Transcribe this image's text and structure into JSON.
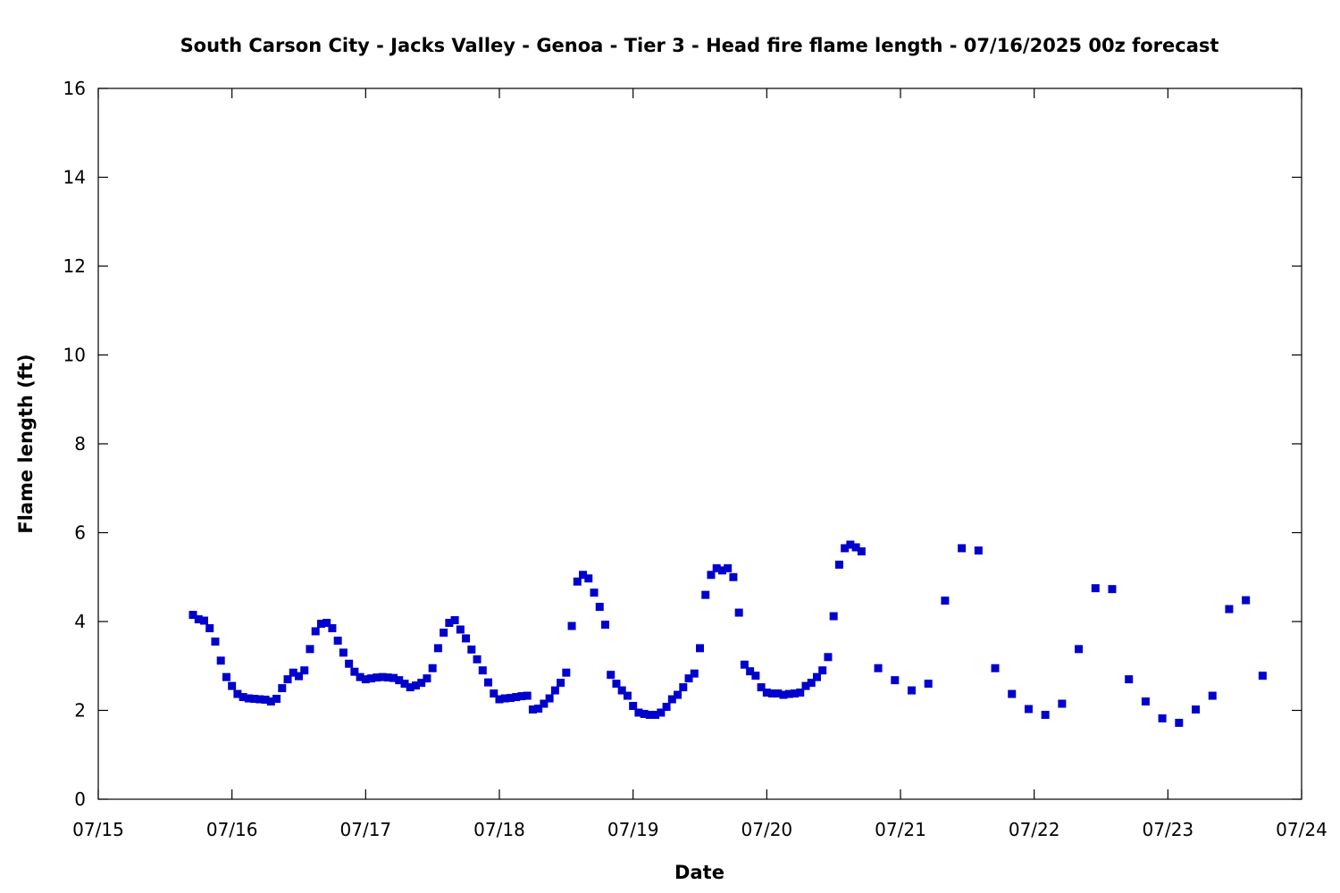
{
  "chart_data": {
    "type": "scatter",
    "title": "South Carson City - Jacks Valley - Genoa - Tier 3 - Head fire flame length - 07/16/2025 00z forecast",
    "xlabel": "Date",
    "ylabel": "Flame length (ft)",
    "xlim": [
      "07/15",
      "07/24"
    ],
    "ylim": [
      0,
      16
    ],
    "x_tick_labels": [
      "07/15",
      "07/16",
      "07/17",
      "07/18",
      "07/19",
      "07/20",
      "07/21",
      "07/22",
      "07/23",
      "07/24"
    ],
    "y_tick_labels": [
      "0",
      "2",
      "4",
      "6",
      "8",
      "10",
      "12",
      "14",
      "16"
    ],
    "grid": false,
    "legend": false,
    "marker": "square",
    "color": "#0000cc",
    "series": [
      {
        "x": [
          "07/15 17:00",
          "07/15 18:00",
          "07/15 19:00",
          "07/15 20:00",
          "07/15 21:00",
          "07/15 22:00",
          "07/15 23:00",
          "07/16 00:00",
          "07/16 01:00",
          "07/16 02:00",
          "07/16 03:00",
          "07/16 04:00",
          "07/16 05:00",
          "07/16 06:00",
          "07/16 07:00",
          "07/16 08:00",
          "07/16 09:00",
          "07/16 10:00",
          "07/16 11:00",
          "07/16 12:00",
          "07/16 13:00",
          "07/16 14:00",
          "07/16 15:00",
          "07/16 16:00",
          "07/16 17:00",
          "07/16 18:00",
          "07/16 19:00",
          "07/16 20:00",
          "07/16 21:00",
          "07/16 22:00",
          "07/16 23:00",
          "07/17 00:00",
          "07/17 01:00",
          "07/17 02:00",
          "07/17 03:00",
          "07/17 04:00",
          "07/17 05:00",
          "07/17 06:00",
          "07/17 07:00",
          "07/17 08:00",
          "07/17 09:00",
          "07/17 10:00",
          "07/17 11:00",
          "07/17 12:00",
          "07/17 13:00",
          "07/17 14:00",
          "07/17 15:00",
          "07/17 16:00",
          "07/17 17:00",
          "07/17 18:00",
          "07/17 19:00",
          "07/17 20:00",
          "07/17 21:00",
          "07/17 22:00",
          "07/17 23:00",
          "07/18 00:00",
          "07/18 01:00",
          "07/18 02:00",
          "07/18 03:00",
          "07/18 04:00",
          "07/18 05:00",
          "07/18 06:00",
          "07/18 07:00",
          "07/18 08:00",
          "07/18 09:00",
          "07/18 10:00",
          "07/18 11:00",
          "07/18 12:00",
          "07/18 13:00",
          "07/18 14:00",
          "07/18 15:00",
          "07/18 16:00",
          "07/18 17:00",
          "07/18 18:00",
          "07/18 19:00",
          "07/18 20:00",
          "07/18 21:00",
          "07/18 22:00",
          "07/18 23:00",
          "07/19 00:00",
          "07/19 01:00",
          "07/19 02:00",
          "07/19 03:00",
          "07/19 04:00",
          "07/19 05:00",
          "07/19 06:00",
          "07/19 07:00",
          "07/19 08:00",
          "07/19 09:00",
          "07/19 10:00",
          "07/19 11:00",
          "07/19 12:00",
          "07/19 13:00",
          "07/19 14:00",
          "07/19 15:00",
          "07/19 16:00",
          "07/19 17:00",
          "07/19 18:00",
          "07/19 19:00",
          "07/19 20:00",
          "07/19 21:00",
          "07/19 22:00",
          "07/19 23:00",
          "07/20 00:00",
          "07/20 01:00",
          "07/20 02:00",
          "07/20 03:00",
          "07/20 04:00",
          "07/20 05:00",
          "07/20 06:00",
          "07/20 07:00",
          "07/20 08:00",
          "07/20 09:00",
          "07/20 10:00",
          "07/20 11:00",
          "07/20 12:00",
          "07/20 13:00",
          "07/20 14:00",
          "07/20 15:00",
          "07/20 16:00",
          "07/20 17:00",
          "07/20 20:00",
          "07/20 23:00",
          "07/21 02:00",
          "07/21 05:00",
          "07/21 08:00",
          "07/21 11:00",
          "07/21 14:00",
          "07/21 17:00",
          "07/21 20:00",
          "07/21 23:00",
          "07/22 02:00",
          "07/22 05:00",
          "07/22 08:00",
          "07/22 11:00",
          "07/22 14:00",
          "07/22 17:00",
          "07/22 20:00",
          "07/22 23:00",
          "07/23 02:00",
          "07/23 05:00",
          "07/23 08:00",
          "07/23 11:00",
          "07/23 14:00",
          "07/23 17:00"
        ],
        "y": [
          4.15,
          4.05,
          4.02,
          3.85,
          3.55,
          3.12,
          2.75,
          2.55,
          2.37,
          2.3,
          2.27,
          2.26,
          2.25,
          2.24,
          2.2,
          2.26,
          2.5,
          2.7,
          2.85,
          2.77,
          2.9,
          3.38,
          3.78,
          3.95,
          3.97,
          3.85,
          3.57,
          3.3,
          3.05,
          2.87,
          2.75,
          2.7,
          2.72,
          2.74,
          2.75,
          2.74,
          2.73,
          2.68,
          2.6,
          2.52,
          2.56,
          2.62,
          2.72,
          2.95,
          3.4,
          3.75,
          3.97,
          4.03,
          3.82,
          3.62,
          3.37,
          3.15,
          2.9,
          2.63,
          2.38,
          2.25,
          2.27,
          2.28,
          2.3,
          2.32,
          2.33,
          2.02,
          2.04,
          2.15,
          2.27,
          2.45,
          2.62,
          2.85,
          3.9,
          4.9,
          5.05,
          4.97,
          4.65,
          4.33,
          3.93,
          2.8,
          2.6,
          2.45,
          2.33,
          2.1,
          1.95,
          1.92,
          1.9,
          1.9,
          1.95,
          2.08,
          2.25,
          2.35,
          2.52,
          2.72,
          2.83,
          3.4,
          4.6,
          5.05,
          5.2,
          5.15,
          5.2,
          5.0,
          4.2,
          3.03,
          2.88,
          2.78,
          2.52,
          2.4,
          2.38,
          2.38,
          2.35,
          2.37,
          2.38,
          2.4,
          2.55,
          2.62,
          2.75,
          2.9,
          3.2,
          4.12,
          5.28,
          5.65,
          5.73,
          5.67,
          5.58,
          2.95,
          2.68,
          2.45,
          2.6,
          4.47,
          5.65,
          5.6,
          2.95,
          2.37,
          2.03,
          1.9,
          2.15,
          3.38,
          4.75,
          4.73,
          2.7,
          2.2,
          1.82,
          1.72,
          2.02,
          2.33,
          4.28,
          4.48,
          2.78
        ]
      }
    ]
  }
}
